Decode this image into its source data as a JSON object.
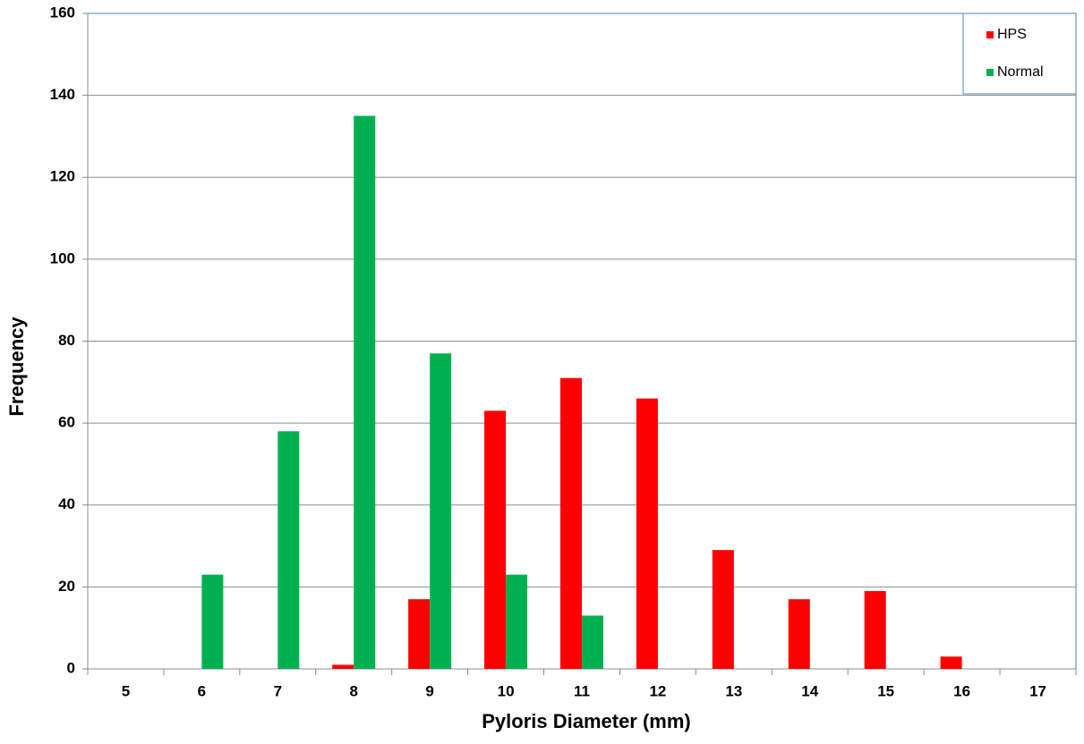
{
  "chart_data": {
    "type": "bar",
    "x_label": "Pyloris Diameter (mm)",
    "y_label": "Frequency",
    "categories": [
      "5",
      "6",
      "7",
      "8",
      "9",
      "10",
      "11",
      "12",
      "13",
      "14",
      "15",
      "16",
      "17"
    ],
    "series": [
      {
        "name": "HPS",
        "color": "#ff0000",
        "values": [
          0,
          0,
          0,
          1,
          17,
          63,
          71,
          66,
          29,
          17,
          19,
          3,
          0
        ]
      },
      {
        "name": "Normal",
        "color": "#00b050",
        "values": [
          0,
          23,
          58,
          135,
          77,
          23,
          13,
          0,
          0,
          0,
          0,
          0,
          0
        ]
      }
    ],
    "ylim": [
      0,
      160
    ],
    "yticks": [
      0,
      20,
      40,
      60,
      80,
      100,
      120,
      140,
      160
    ],
    "grid": true,
    "legend": "top-right"
  }
}
